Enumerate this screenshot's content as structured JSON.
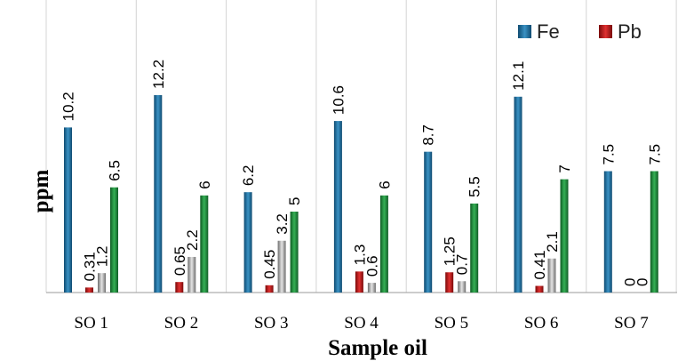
{
  "chart_data": {
    "type": "bar",
    "xlabel": "Sample oil",
    "ylabel": "ppm",
    "categories": [
      "SO 1",
      "SO 2",
      "SO 3",
      "SO 4",
      "SO 5",
      "SO 6",
      "SO 7"
    ],
    "series": [
      {
        "name": "Fe",
        "color": "#1B6E9E",
        "values": [
          10.2,
          12.2,
          6.2,
          10.6,
          8.7,
          12.1,
          7.5
        ]
      },
      {
        "name": "Pb",
        "color": "#B81414",
        "values": [
          0.31,
          0.65,
          0.45,
          1.3,
          1.25,
          0.41,
          0
        ]
      },
      {
        "color": "#A8A8A8",
        "values": [
          1.2,
          2.2,
          3.2,
          0.6,
          0.7,
          2.1,
          0
        ]
      },
      {
        "color": "#1E8C3A",
        "values": [
          6.5,
          6,
          5,
          6,
          5.5,
          7,
          7.5
        ]
      }
    ],
    "ylim": [
      0,
      14
    ],
    "legend": "top-right",
    "grid": "vertical"
  }
}
